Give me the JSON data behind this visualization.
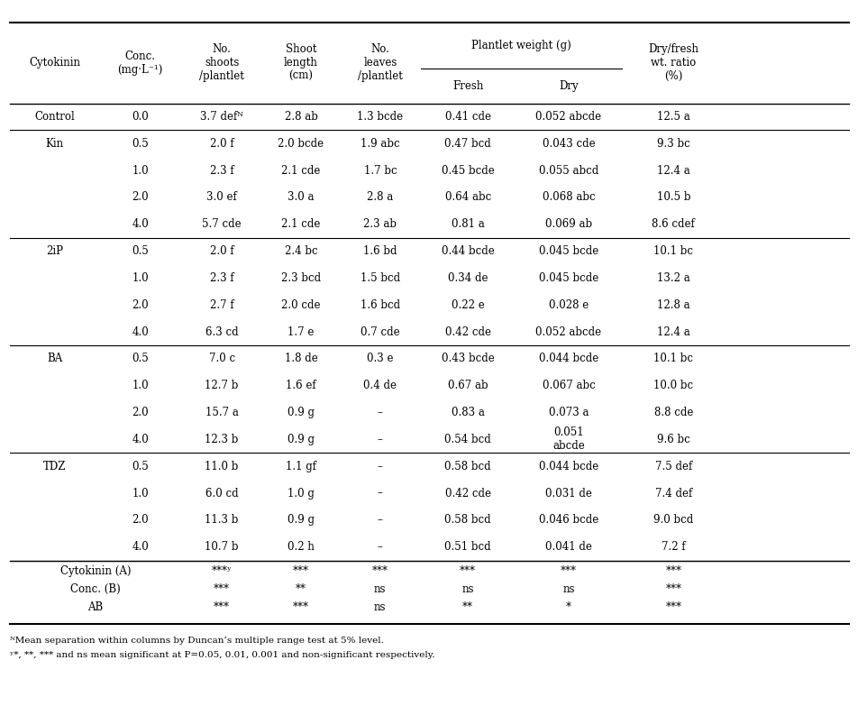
{
  "title": "",
  "figsize": [
    9.53,
    7.83
  ],
  "dpi": 100,
  "col_headers_line1": [
    "Cytokinin",
    "Conc.\n(mg·L⁻¹)",
    "No.\nshoots\n/plantlet",
    "Shoot\nlength\n(cm)",
    "No.\nleaves\n/plantlet",
    "Plantlet weight (g)",
    "",
    "Dry/fresh\nwt. ratio\n(%)"
  ],
  "sub_headers": [
    "Fresh",
    "Dry"
  ],
  "rows": [
    [
      "Control",
      "0.0",
      "3.7 defᴺ",
      "2.8 ab",
      "1.3 bcde",
      "0.41 cde",
      "0.052 abcde",
      "12.5 a"
    ],
    [
      "Kin",
      "0.5",
      "2.0 f",
      "2.0 bcde",
      "1.9 abc",
      "0.47 bcd",
      "0.043 cde",
      "9.3 bc"
    ],
    [
      "",
      "1.0",
      "2.3 f",
      "2.1 cde",
      "1.7 bc",
      "0.45 bcde",
      "0.055 abcd",
      "12.4 a"
    ],
    [
      "",
      "2.0",
      "3.0 ef",
      "3.0 a",
      "2.8 a",
      "0.64 abc",
      "0.068 abc",
      "10.5 b"
    ],
    [
      "",
      "4.0",
      "5.7 cde",
      "2.1 cde",
      "2.3 ab",
      "0.81 a",
      "0.069 ab",
      "8.6 cdef"
    ],
    [
      "2iP",
      "0.5",
      "2.0 f",
      "2.4 bc",
      "1.6 bd",
      "0.44 bcde",
      "0.045 bcde",
      "10.1 bc"
    ],
    [
      "",
      "1.0",
      "2.3 f",
      "2.3 bcd",
      "1.5 bcd",
      "0.34 de",
      "0.045 bcde",
      "13.2 a"
    ],
    [
      "",
      "2.0",
      "2.7 f",
      "2.0 cde",
      "1.6 bcd",
      "0.22 e",
      "0.028 e",
      "12.8 a"
    ],
    [
      "",
      "4.0",
      "6.3 cd",
      "1.7 e",
      "0.7 cde",
      "0.42 cde",
      "0.052 abcde",
      "12.4 a"
    ],
    [
      "BA",
      "0.5",
      "7.0 c",
      "1.8 de",
      "0.3 e",
      "0.43 bcde",
      "0.044 bcde",
      "10.1 bc"
    ],
    [
      "",
      "1.0",
      "12.7 b",
      "1.6 ef",
      "0.4 de",
      "0.67 ab",
      "0.067 abc",
      "10.0 bc"
    ],
    [
      "",
      "2.0",
      "15.7 a",
      "0.9 g",
      "–",
      "0.83 a",
      "0.073 a",
      "8.8 cde"
    ],
    [
      "",
      "4.0",
      "12.3 b",
      "0.9 g",
      "–",
      "0.54 bcd",
      "0.051\nabcde",
      "9.6 bc"
    ],
    [
      "TDZ",
      "0.5",
      "11.0 b",
      "1.1 gf",
      "–",
      "0.58 bcd",
      "0.044 bcde",
      "7.5 def"
    ],
    [
      "",
      "1.0",
      "6.0 cd",
      "1.0 g",
      "–",
      "0.42 cde",
      "0.031 de",
      "7.4 def"
    ],
    [
      "",
      "2.0",
      "11.3 b",
      "0.9 g",
      "–",
      "0.58 bcd",
      "0.046 bcde",
      "9.0 bcd"
    ],
    [
      "",
      "4.0",
      "10.7 b",
      "0.2 h",
      "–",
      "0.51 bcd",
      "0.041 de",
      "7.2 f"
    ]
  ],
  "stat_rows": [
    [
      "Cytokinin (A)",
      "",
      "***ʸ",
      "***",
      "***",
      "***",
      "***",
      "***"
    ],
    [
      "Conc. (B)",
      "",
      "***",
      "**",
      "ns",
      "ns",
      "ns",
      "***"
    ],
    [
      "AB",
      "",
      "***",
      "***",
      "ns",
      "**",
      "*",
      "***"
    ]
  ],
  "footnote1": "ᴺMean separation within columns by Duncan’s multiple range test at 5% level.",
  "footnote2": "ʸ*, **, *** and ns mean significant at P=0.05, 0.01, 0.001 and non-significant respectively.",
  "separator_rows": [
    0,
    1,
    6,
    10,
    14,
    18
  ],
  "group_separators": [
    1,
    5,
    9,
    13,
    17
  ]
}
